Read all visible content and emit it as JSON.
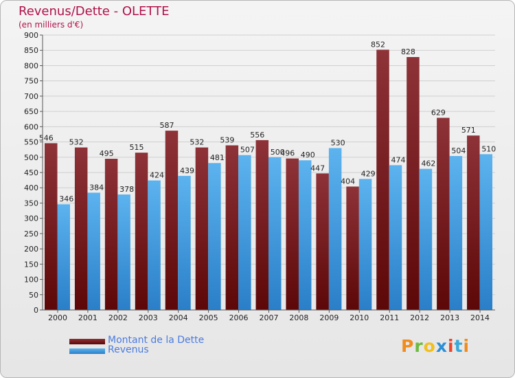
{
  "header": {
    "title": "Revenus/Dette - OLETTE",
    "subtitle": "(en milliers d'€)"
  },
  "legend": {
    "items": [
      {
        "label": "Montant de la Dette",
        "color": "#6b0d0d"
      },
      {
        "label": "Revenus",
        "color": "#3e9ee0"
      }
    ]
  },
  "logo": {
    "text": "Proxiti"
  },
  "colors": {
    "debt_dark": "#5c0708",
    "debt_light": "#8e3338",
    "revenue_dark": "#2a7fc8",
    "revenue_light": "#5cb3ee",
    "grid": "#cfcfcf",
    "axis": "#555555"
  },
  "chart_data": {
    "type": "bar",
    "title": "Revenus/Dette - OLETTE",
    "subtitle": "(en milliers d'€)",
    "xlabel": "",
    "ylabel": "",
    "ylim": [
      0,
      900
    ],
    "ytick_step": 50,
    "grid": true,
    "categories": [
      "2000",
      "2001",
      "2002",
      "2003",
      "2004",
      "2005",
      "2006",
      "2007",
      "2008",
      "2009",
      "2010",
      "2011",
      "2012",
      "2013",
      "2014"
    ],
    "series": [
      {
        "name": "Montant de la Dette",
        "values": [
          546,
          532,
          495,
          515,
          587,
          532,
          539,
          556,
          496,
          447,
          404,
          852,
          828,
          629,
          571
        ]
      },
      {
        "name": "Revenus",
        "values": [
          346,
          384,
          378,
          424,
          439,
          481,
          507,
          500,
          490,
          530,
          429,
          474,
          462,
          504,
          510
        ]
      }
    ]
  }
}
